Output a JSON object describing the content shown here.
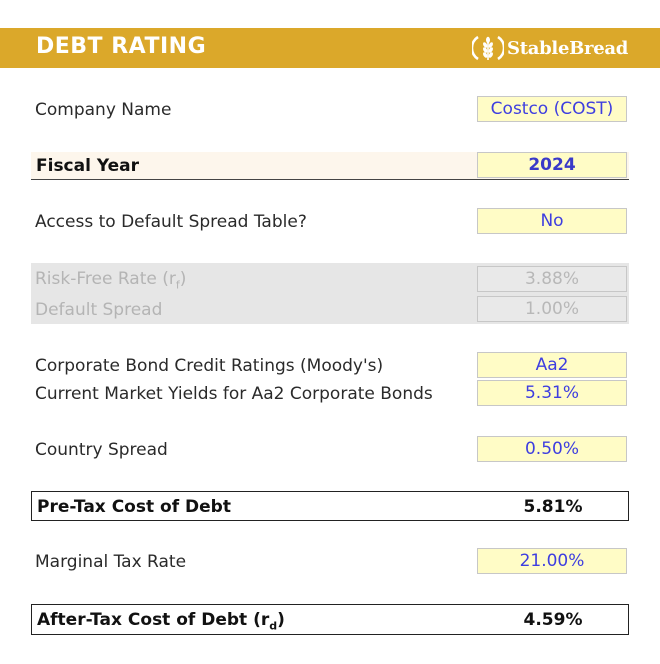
{
  "header": {
    "title": "DEBT RATING",
    "brand": "StableBread"
  },
  "rows": {
    "company_name": {
      "label": "Company Name",
      "value": "Costco (COST)"
    },
    "fiscal_year": {
      "label": "Fiscal Year",
      "value": "2024"
    },
    "default_spread_access": {
      "label": "Access to Default Spread Table?",
      "value": "No"
    },
    "risk_free_rate": {
      "label": "Risk-Free Rate (r",
      "label_sub": "f",
      "label_end": ")",
      "value": "3.88%"
    },
    "default_spread": {
      "label": "Default Spread",
      "value": "1.00%"
    },
    "credit_rating": {
      "label": "Corporate Bond Credit Ratings (Moody's)",
      "value": "Aa2"
    },
    "market_yields": {
      "label": "Current Market Yields for Aa2 Corporate Bonds",
      "value": "5.31%"
    },
    "country_spread": {
      "label": "Country Spread",
      "value": "0.50%"
    },
    "pre_tax_cost": {
      "label": "Pre-Tax Cost of Debt",
      "value": "5.81%"
    },
    "marginal_tax_rate": {
      "label": "Marginal Tax Rate",
      "value": "21.00%"
    },
    "after_tax_cost": {
      "label": "After-Tax Cost of Debt (r",
      "label_sub": "d",
      "label_end": ")",
      "value": "4.59%"
    }
  },
  "colors": {
    "header_bg": "#dba82a",
    "input_bg": "#fffcc6",
    "input_text": "#3e3ee0",
    "disabled_bg": "#e6e6e6"
  }
}
